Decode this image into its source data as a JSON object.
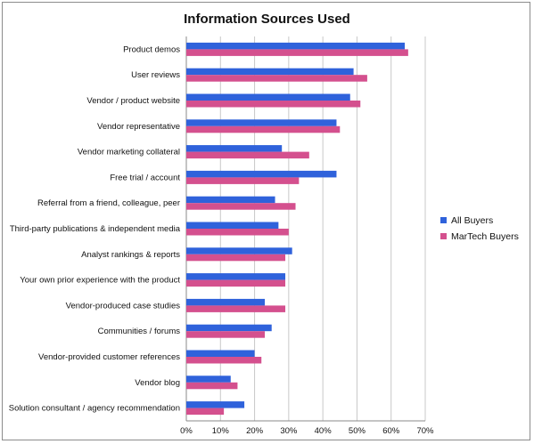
{
  "chart_data": {
    "type": "bar",
    "orientation": "horizontal",
    "title": "Information Sources Used",
    "xlabel": "",
    "ylabel": "",
    "xlim": [
      0,
      70
    ],
    "x_tick_labels": [
      "0%",
      "10%",
      "20%",
      "30%",
      "40%",
      "50%",
      "60%",
      "70%"
    ],
    "grid": true,
    "legend_position": "right",
    "categories": [
      "Product demos",
      "User reviews",
      "Vendor / product website",
      "Vendor representative",
      "Vendor marketing collateral",
      "Free trial / account",
      "Referral from a friend, colleague, peer",
      "Third-party publications & independent media",
      "Analyst rankings & reports",
      "Your own prior experience with the product",
      "Vendor-produced case studies",
      "Communities / forums",
      "Vendor-provided customer references",
      "Vendor blog",
      "Solution consultant / agency recommendation"
    ],
    "series": [
      {
        "name": "All Buyers",
        "color": "#2f62db",
        "values": [
          64,
          49,
          48,
          44,
          28,
          44,
          26,
          27,
          31,
          29,
          23,
          25,
          20,
          13,
          17
        ]
      },
      {
        "name": "MarTech Buyers",
        "color": "#d4508e",
        "values": [
          65,
          53,
          51,
          45,
          36,
          33,
          32,
          30,
          29,
          29,
          29,
          23,
          22,
          15,
          11
        ]
      }
    ]
  }
}
